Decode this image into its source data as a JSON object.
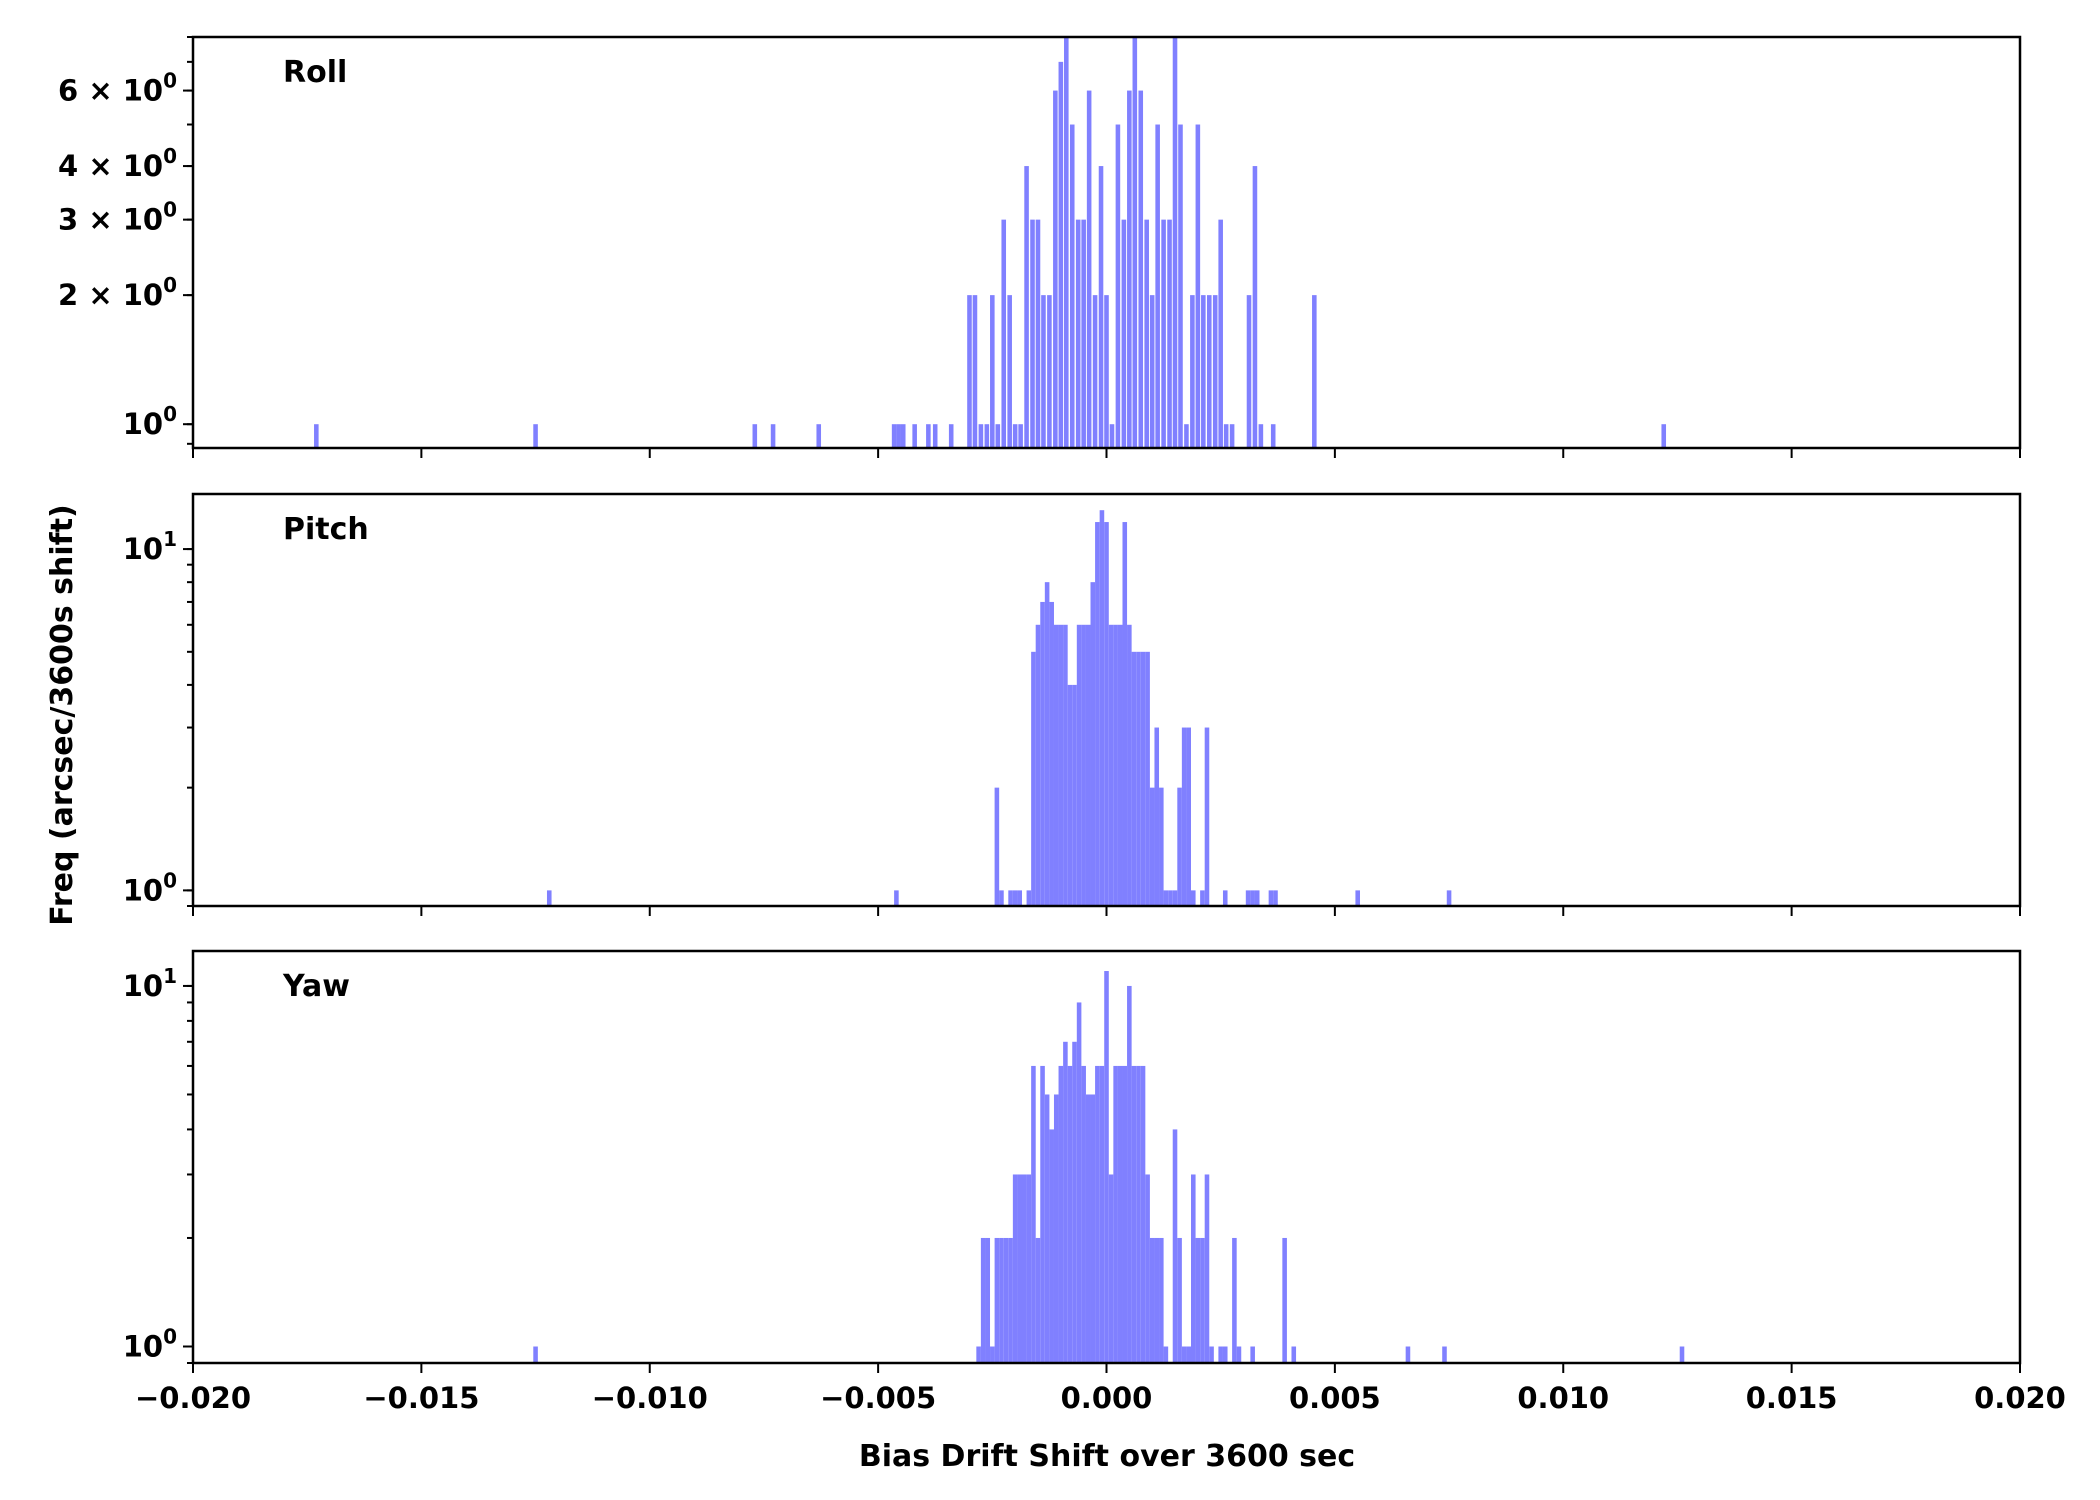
{
  "chart_data": [
    {
      "type": "histogram",
      "title": "Roll",
      "yscale": "log",
      "ylim": [
        0.88,
        8.0
      ],
      "xlim": [
        -0.02,
        0.02
      ],
      "yticks": [
        {
          "value": 1,
          "mantissa": "",
          "exp": "0"
        },
        {
          "value": 2,
          "mantissa": "2 × ",
          "exp": "0"
        },
        {
          "value": 3,
          "mantissa": "3 × ",
          "exp": "0"
        },
        {
          "value": 4,
          "mantissa": "4 × ",
          "exp": "0"
        },
        {
          "value": 6,
          "mantissa": "6 × ",
          "exp": "0"
        }
      ],
      "bins": [
        [
          -0.0173,
          1
        ],
        [
          -0.0125,
          1
        ],
        [
          -0.0077,
          1
        ],
        [
          -0.0073,
          1
        ],
        [
          -0.0063,
          1
        ],
        [
          -0.00465,
          1
        ],
        [
          -0.00455,
          1
        ],
        [
          -0.00445,
          1
        ],
        [
          -0.0042,
          1
        ],
        [
          -0.0039,
          1
        ],
        [
          -0.00375,
          1
        ],
        [
          -0.0034,
          1
        ],
        [
          -0.003,
          2
        ],
        [
          -0.00288,
          2
        ],
        [
          -0.00275,
          1
        ],
        [
          -0.00262,
          1
        ],
        [
          -0.0025,
          2
        ],
        [
          -0.00238,
          1
        ],
        [
          -0.00225,
          3
        ],
        [
          -0.00212,
          2
        ],
        [
          -0.002,
          1
        ],
        [
          -0.00188,
          1
        ],
        [
          -0.00175,
          4
        ],
        [
          -0.00162,
          3
        ],
        [
          -0.0015,
          3
        ],
        [
          -0.00138,
          2
        ],
        [
          -0.00125,
          2
        ],
        [
          -0.00112,
          6
        ],
        [
          -0.001,
          7
        ],
        [
          -0.00088,
          8
        ],
        [
          -0.00075,
          5
        ],
        [
          -0.00062,
          3
        ],
        [
          -0.0005,
          3
        ],
        [
          -0.00038,
          6
        ],
        [
          -0.00025,
          2
        ],
        [
          -0.00012,
          4
        ],
        [
          0.0,
          2
        ],
        [
          0.00012,
          1
        ],
        [
          0.00025,
          5
        ],
        [
          0.00038,
          3
        ],
        [
          0.0005,
          6
        ],
        [
          0.00062,
          8
        ],
        [
          0.00075,
          6
        ],
        [
          0.00088,
          3
        ],
        [
          0.001,
          2
        ],
        [
          0.00112,
          5
        ],
        [
          0.00125,
          3
        ],
        [
          0.00138,
          3
        ],
        [
          0.0015,
          8
        ],
        [
          0.00162,
          5
        ],
        [
          0.00175,
          1
        ],
        [
          0.00188,
          2
        ],
        [
          0.002,
          5
        ],
        [
          0.00212,
          2
        ],
        [
          0.00225,
          2
        ],
        [
          0.00238,
          2
        ],
        [
          0.0025,
          3
        ],
        [
          0.00262,
          1
        ],
        [
          0.00275,
          1
        ],
        [
          0.00312,
          2
        ],
        [
          0.00325,
          4
        ],
        [
          0.00338,
          1
        ],
        [
          0.00365,
          1
        ],
        [
          0.00455,
          2
        ],
        [
          0.0122,
          1
        ]
      ]
    },
    {
      "type": "histogram",
      "title": "Pitch",
      "yscale": "log",
      "ylim": [
        0.9,
        14.5
      ],
      "xlim": [
        -0.02,
        0.02
      ],
      "yticks": [
        {
          "value": 1,
          "mantissa": "",
          "exp": "0"
        },
        {
          "value": 10,
          "mantissa": "",
          "exp": "1"
        }
      ],
      "bins": [
        [
          -0.0122,
          1
        ],
        [
          -0.0046,
          1
        ],
        [
          -0.0024,
          2
        ],
        [
          -0.0023,
          1
        ],
        [
          -0.0021,
          1
        ],
        [
          -0.002,
          1
        ],
        [
          -0.0019,
          1
        ],
        [
          -0.0017,
          1
        ],
        [
          -0.0016,
          5
        ],
        [
          -0.0015,
          6
        ],
        [
          -0.0014,
          7
        ],
        [
          -0.0013,
          8
        ],
        [
          -0.0012,
          7
        ],
        [
          -0.0011,
          6
        ],
        [
          -0.001,
          6
        ],
        [
          -0.0009,
          6
        ],
        [
          -0.0008,
          4
        ],
        [
          -0.0007,
          4
        ],
        [
          -0.0006,
          6
        ],
        [
          -0.0005,
          6
        ],
        [
          -0.0004,
          6
        ],
        [
          -0.0003,
          8
        ],
        [
          -0.0002,
          12
        ],
        [
          -0.0001,
          13
        ],
        [
          0.0,
          12
        ],
        [
          0.0001,
          6
        ],
        [
          0.0002,
          6
        ],
        [
          0.0003,
          6
        ],
        [
          0.0004,
          12
        ],
        [
          0.0005,
          6
        ],
        [
          0.0006,
          5
        ],
        [
          0.0007,
          5
        ],
        [
          0.0008,
          5
        ],
        [
          0.0009,
          5
        ],
        [
          0.001,
          2
        ],
        [
          0.0011,
          3
        ],
        [
          0.0012,
          2
        ],
        [
          0.0013,
          1
        ],
        [
          0.0014,
          1
        ],
        [
          0.0015,
          1
        ],
        [
          0.0016,
          2
        ],
        [
          0.0017,
          3
        ],
        [
          0.0018,
          3
        ],
        [
          0.0019,
          1
        ],
        [
          0.0021,
          1
        ],
        [
          0.0022,
          3
        ],
        [
          0.0026,
          1
        ],
        [
          0.0031,
          1
        ],
        [
          0.0032,
          1
        ],
        [
          0.0033,
          1
        ],
        [
          0.0036,
          1
        ],
        [
          0.0037,
          1
        ],
        [
          0.0055,
          1
        ],
        [
          0.0075,
          1
        ]
      ]
    },
    {
      "type": "histogram",
      "title": "Yaw",
      "yscale": "log",
      "ylim": [
        0.9,
        12.5
      ],
      "xlim": [
        -0.02,
        0.02
      ],
      "xlabel": "Bias Drift Shift over 3600 sec",
      "xticks": [
        "−0.020",
        "−0.015",
        "−0.010",
        "−0.005",
        "0.000",
        "0.005",
        "0.010",
        "0.015",
        "0.020"
      ],
      "yticks": [
        {
          "value": 1,
          "mantissa": "",
          "exp": "0"
        },
        {
          "value": 10,
          "mantissa": "",
          "exp": "1"
        }
      ],
      "bins": [
        [
          -0.0125,
          1
        ],
        [
          -0.0028,
          1
        ],
        [
          -0.0027,
          2
        ],
        [
          -0.0026,
          2
        ],
        [
          -0.0025,
          1
        ],
        [
          -0.0024,
          2
        ],
        [
          -0.0023,
          2
        ],
        [
          -0.0022,
          2
        ],
        [
          -0.0021,
          2
        ],
        [
          -0.002,
          3
        ],
        [
          -0.0019,
          3
        ],
        [
          -0.0018,
          3
        ],
        [
          -0.0017,
          3
        ],
        [
          -0.0016,
          6
        ],
        [
          -0.0015,
          2
        ],
        [
          -0.0014,
          6
        ],
        [
          -0.0013,
          5
        ],
        [
          -0.0012,
          4
        ],
        [
          -0.0011,
          5
        ],
        [
          -0.001,
          6
        ],
        [
          -0.0009,
          7
        ],
        [
          -0.0008,
          6
        ],
        [
          -0.0007,
          7
        ],
        [
          -0.0006,
          9
        ],
        [
          -0.0005,
          6
        ],
        [
          -0.0004,
          5
        ],
        [
          -0.0003,
          5
        ],
        [
          -0.0002,
          6
        ],
        [
          -0.0001,
          6
        ],
        [
          0.0,
          11
        ],
        [
          0.0001,
          3
        ],
        [
          0.0002,
          6
        ],
        [
          0.0003,
          6
        ],
        [
          0.0004,
          6
        ],
        [
          0.0005,
          10
        ],
        [
          0.0006,
          6
        ],
        [
          0.0007,
          6
        ],
        [
          0.0008,
          6
        ],
        [
          0.0009,
          3
        ],
        [
          0.001,
          2
        ],
        [
          0.0011,
          2
        ],
        [
          0.0012,
          2
        ],
        [
          0.0013,
          1
        ],
        [
          0.0015,
          4
        ],
        [
          0.0016,
          2
        ],
        [
          0.0017,
          1
        ],
        [
          0.0018,
          1
        ],
        [
          0.0019,
          3
        ],
        [
          0.002,
          2
        ],
        [
          0.0021,
          2
        ],
        [
          0.0022,
          3
        ],
        [
          0.0023,
          1
        ],
        [
          0.0025,
          1
        ],
        [
          0.0026,
          1
        ],
        [
          0.0028,
          2
        ],
        [
          0.0029,
          1
        ],
        [
          0.0032,
          1
        ],
        [
          0.0039,
          2
        ],
        [
          0.0041,
          1
        ],
        [
          0.0066,
          1
        ],
        [
          0.0074,
          1
        ],
        [
          0.0126,
          1
        ]
      ]
    }
  ],
  "ylabel": "Freq (arcsec/3600s shift)"
}
